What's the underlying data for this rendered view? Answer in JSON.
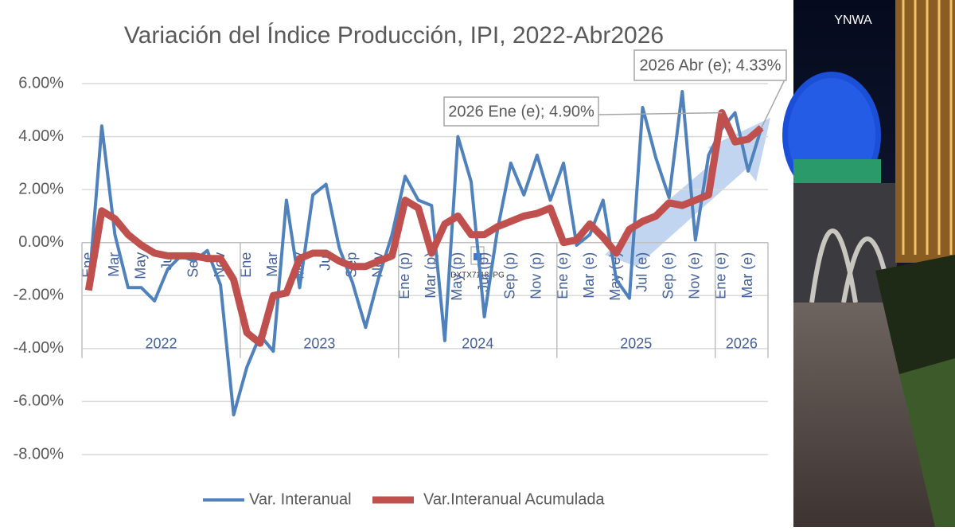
{
  "chart_data": {
    "type": "line",
    "title": "Variación del Índice Producción, IPI, 2022-Abr2026",
    "categories": [
      "Ene",
      null,
      "Mar",
      null,
      "May",
      null,
      "Jul",
      null,
      "Sep",
      null,
      "Nov",
      null,
      "Ene",
      null,
      "Mar",
      null,
      "May",
      null,
      "Jul",
      null,
      "Sep",
      null,
      "Nov",
      null,
      "Ene (p)",
      null,
      "Mar (p)",
      null,
      "May (p)",
      null,
      "Jul (p)",
      null,
      "Sep (p)",
      null,
      "Nov (p)",
      null,
      "Ene (e)",
      null,
      "Mar (e)",
      null,
      "May (e)",
      null,
      "Jul (e)",
      null,
      "Sep (e)",
      null,
      "Nov (e)",
      null,
      "Ene (e)",
      null,
      "Mar (e)",
      null
    ],
    "years": [
      "2022",
      "2023",
      "2024",
      "2025",
      "2026"
    ],
    "series": [
      {
        "name": "Var. Interanual",
        "color": "#4f81bd",
        "values": [
          -1.8,
          4.4,
          0.3,
          -1.7,
          -1.7,
          -2.2,
          -1.0,
          -0.5,
          -0.7,
          -0.3,
          -1.6,
          -6.5,
          -4.7,
          -3.5,
          -4.1,
          1.6,
          -1.7,
          1.8,
          2.2,
          -0.2,
          -1.5,
          -3.2,
          -1.3,
          0.3,
          2.5,
          1.6,
          1.4,
          -3.7,
          4.0,
          2.3,
          -2.8,
          0.5,
          3.0,
          1.8,
          3.3,
          1.6,
          3.0,
          -0.1,
          0.3,
          1.6,
          -1.4,
          -2.1,
          5.1,
          3.2,
          1.7,
          5.7,
          0.1,
          3.3,
          4.3,
          4.9,
          2.7,
          4.33
        ]
      },
      {
        "name": "Var.Interanual Acumulada",
        "color": "#c0504d",
        "values": [
          -1.8,
          1.2,
          0.9,
          0.3,
          -0.1,
          -0.4,
          -0.5,
          -0.5,
          -0.5,
          -0.6,
          -0.6,
          -1.4,
          -3.4,
          -3.8,
          -2.0,
          -1.9,
          -0.6,
          -0.4,
          -0.4,
          -0.7,
          -0.9,
          -0.9,
          -0.7,
          -0.5,
          1.6,
          1.3,
          -0.4,
          0.7,
          1.0,
          0.3,
          0.3,
          0.6,
          0.8,
          1.0,
          1.1,
          1.3,
          0.0,
          0.1,
          0.7,
          0.2,
          -0.4,
          0.5,
          0.8,
          1.0,
          1.5,
          1.4,
          1.6,
          1.8,
          4.9,
          3.8,
          3.9,
          4.33
        ]
      }
    ],
    "ylim": [
      -8,
      6.5
    ],
    "yticks": [
      {
        "value": -8,
        "label": "-8.00%"
      },
      {
        "value": -6,
        "label": "-6.00%"
      },
      {
        "value": -4,
        "label": "-4.00%"
      },
      {
        "value": -2,
        "label": "-2.00%"
      },
      {
        "value": 0,
        "label": "0.00%"
      },
      {
        "value": 2,
        "label": "2.00%"
      },
      {
        "value": 4,
        "label": "4.00%"
      },
      {
        "value": 6,
        "label": "6.00%"
      }
    ],
    "grid": true,
    "legend": "bottom",
    "annotations": [
      "2026 Abr (e); 4.33%",
      "2026 Ene (e); 4.90%"
    ],
    "image_placeholder": "DXTX7118JPG",
    "photo_caption": "YNWA"
  }
}
